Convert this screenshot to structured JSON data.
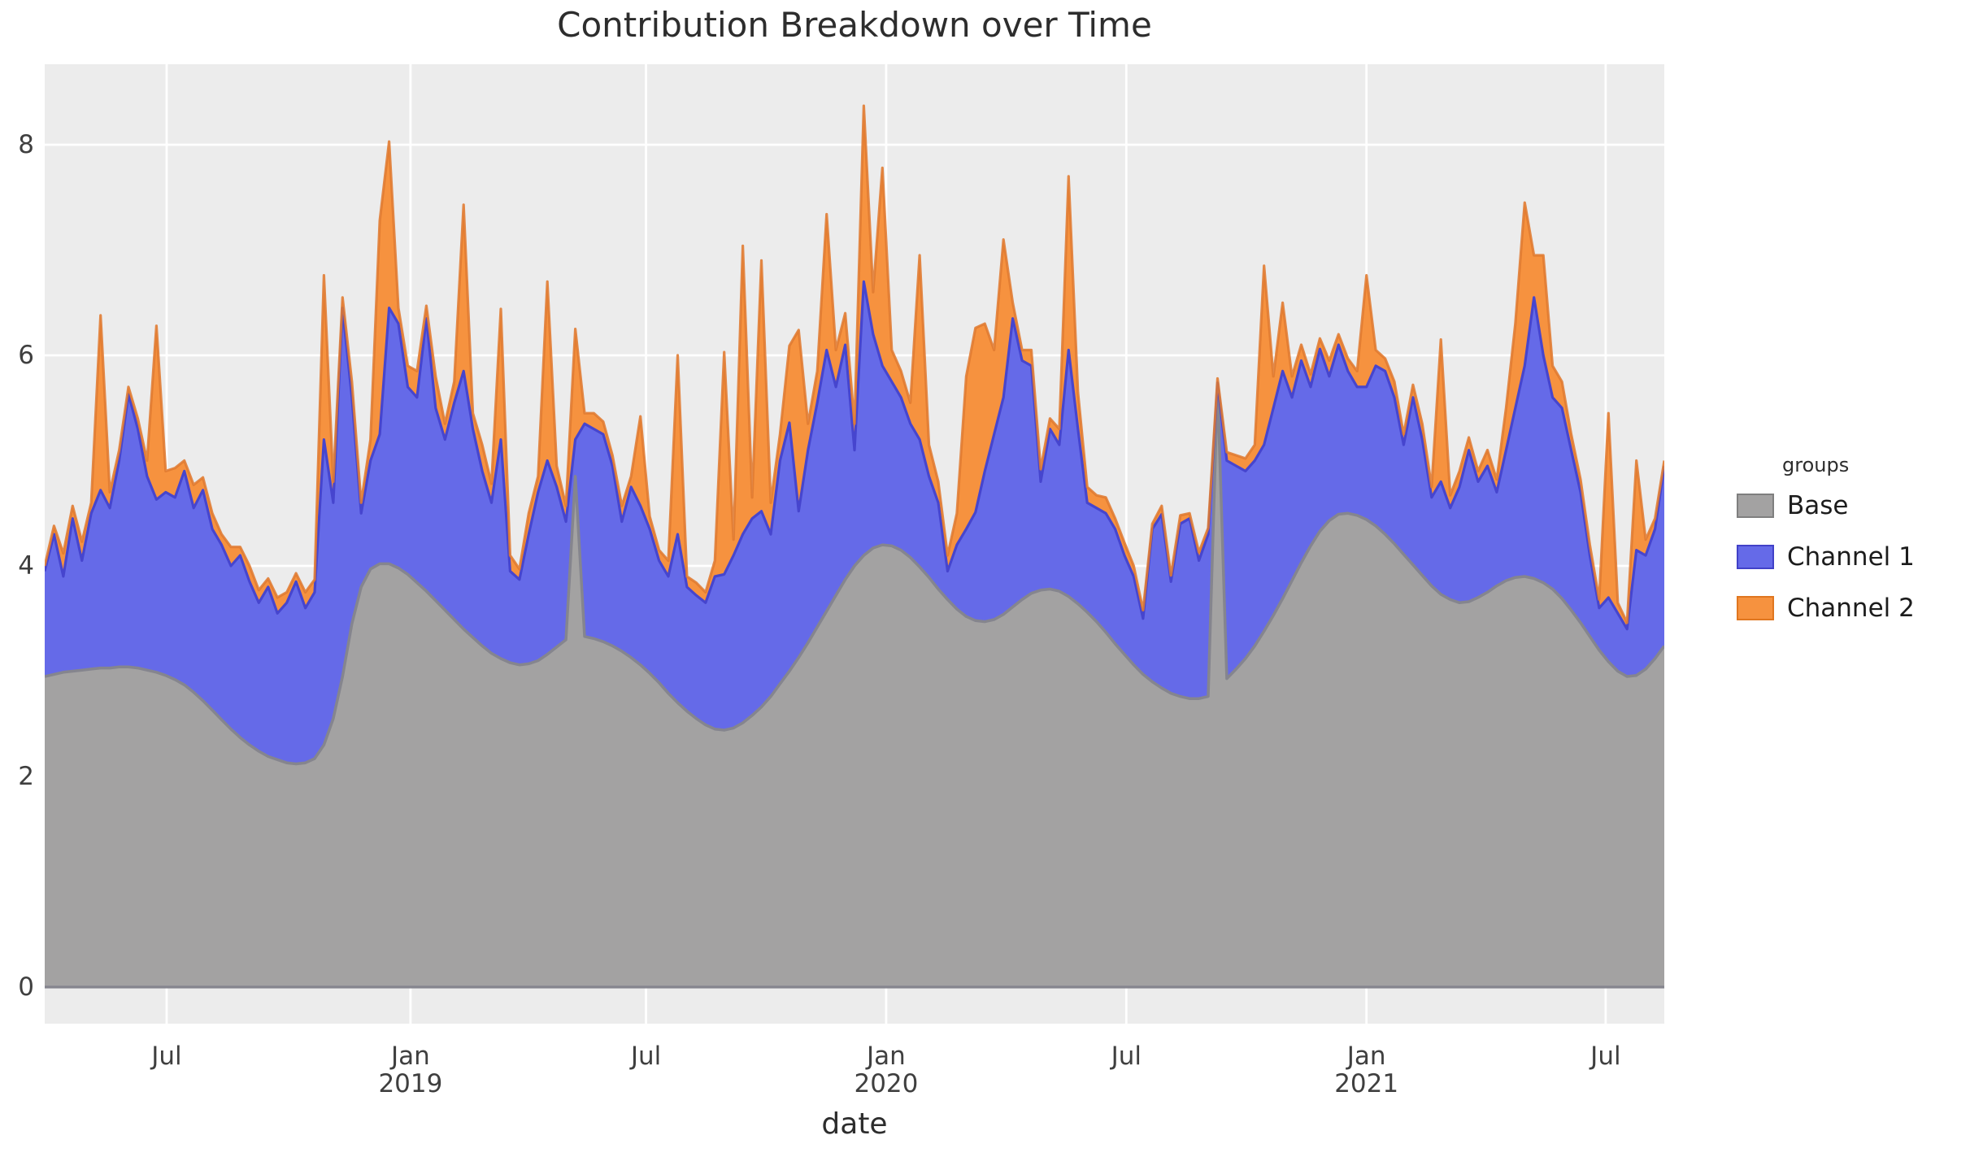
{
  "title": "Contribution Breakdown over Time",
  "axes": {
    "x_label": "date",
    "y_ticks": [
      0,
      2,
      4,
      6,
      8
    ],
    "x_ticks": [
      {
        "label": "Jul",
        "week": 13.1
      },
      {
        "label": "Jan",
        "year": "2019",
        "week": 39.3
      },
      {
        "label": "Jul",
        "week": 64.6
      },
      {
        "label": "Jan",
        "year": "2020",
        "week": 90.4
      },
      {
        "label": "Jul",
        "week": 116.2
      },
      {
        "label": "Jan",
        "year": "2021",
        "week": 142.0
      },
      {
        "label": "Jul",
        "week": 167.7
      }
    ]
  },
  "legend": {
    "title": "groups",
    "items": [
      {
        "label": "Base",
        "fill": "#A3A2A2",
        "border": "#7F7F7F"
      },
      {
        "label": "Channel 1",
        "fill": "#656AE8",
        "border": "#4141C8"
      },
      {
        "label": "Channel 2",
        "fill": "#F6923F",
        "border": "#E0761F"
      }
    ]
  },
  "colors": {
    "panel_bg": "#ECECEC",
    "grid": "#FFFFFF",
    "title_text": "#2D2D2D",
    "tick_text": "#3F3F3F"
  },
  "chart_data": {
    "type": "area",
    "stacked": true,
    "title": "Contribution Breakdown over Time",
    "xlabel": "date",
    "ylabel": "",
    "x_start": "2018-04-01",
    "x_end": "2021-08-01",
    "x_freq": "weekly",
    "n_points": 175,
    "ylim": [
      -0.35,
      8.77
    ],
    "grid": true,
    "legend_position": "right",
    "legend_title": "groups",
    "series": [
      {
        "name": "Base",
        "fill": "#A3A2A2",
        "stroke": "#85858E",
        "values": [
          2.95,
          2.97,
          2.99,
          3.0,
          3.01,
          3.02,
          3.03,
          3.03,
          3.04,
          3.04,
          3.03,
          3.01,
          2.99,
          2.96,
          2.92,
          2.87,
          2.8,
          2.72,
          2.63,
          2.54,
          2.45,
          2.37,
          2.3,
          2.24,
          2.19,
          2.16,
          2.13,
          2.12,
          2.13,
          2.17,
          2.3,
          2.55,
          2.95,
          3.45,
          3.8,
          3.97,
          4.02,
          4.02,
          3.98,
          3.92,
          3.84,
          3.76,
          3.67,
          3.58,
          3.49,
          3.4,
          3.32,
          3.24,
          3.17,
          3.12,
          3.08,
          3.06,
          3.07,
          3.1,
          3.16,
          3.23,
          3.3,
          4.85,
          3.33,
          3.31,
          3.28,
          3.24,
          3.19,
          3.13,
          3.06,
          2.98,
          2.89,
          2.79,
          2.7,
          2.62,
          2.55,
          2.49,
          2.45,
          2.44,
          2.46,
          2.51,
          2.58,
          2.66,
          2.76,
          2.88,
          3.0,
          3.13,
          3.27,
          3.42,
          3.57,
          3.72,
          3.87,
          4.0,
          4.1,
          4.17,
          4.2,
          4.19,
          4.15,
          4.08,
          3.99,
          3.89,
          3.78,
          3.68,
          3.59,
          3.52,
          3.48,
          3.47,
          3.49,
          3.54,
          3.61,
          3.68,
          3.74,
          3.77,
          3.78,
          3.76,
          3.71,
          3.64,
          3.56,
          3.47,
          3.37,
          3.26,
          3.16,
          3.06,
          2.97,
          2.9,
          2.84,
          2.79,
          2.76,
          2.74,
          2.74,
          2.76,
          5.72,
          2.93,
          3.02,
          3.12,
          3.24,
          3.38,
          3.53,
          3.69,
          3.86,
          4.03,
          4.19,
          4.33,
          4.43,
          4.49,
          4.5,
          4.48,
          4.44,
          4.38,
          4.3,
          4.21,
          4.11,
          4.01,
          3.91,
          3.81,
          3.73,
          3.68,
          3.65,
          3.66,
          3.7,
          3.75,
          3.81,
          3.86,
          3.89,
          3.9,
          3.88,
          3.84,
          3.78,
          3.69,
          3.58,
          3.46,
          3.33,
          3.2,
          3.09,
          3.0,
          2.95,
          2.96,
          3.02,
          3.12,
          3.24
        ]
      },
      {
        "name": "Channel 1",
        "fill": "#656AE8",
        "stroke": "#4645CE",
        "values": [
          1.0,
          1.33,
          0.91,
          1.45,
          1.04,
          1.48,
          1.69,
          1.52,
          1.96,
          2.59,
          2.27,
          1.84,
          1.64,
          1.74,
          1.73,
          2.03,
          1.75,
          2.0,
          1.72,
          1.66,
          1.55,
          1.73,
          1.55,
          1.41,
          1.61,
          1.39,
          1.52,
          1.73,
          1.47,
          1.58,
          2.9,
          2.05,
          3.5,
          2.15,
          0.7,
          1.03,
          1.23,
          2.43,
          2.32,
          1.78,
          1.76,
          2.59,
          1.83,
          1.62,
          2.06,
          2.45,
          1.98,
          1.66,
          1.43,
          2.08,
          0.87,
          0.81,
          1.23,
          1.6,
          1.84,
          1.52,
          1.12,
          0.35,
          2.02,
          1.99,
          1.97,
          1.71,
          1.23,
          1.62,
          1.51,
          1.37,
          1.16,
          1.11,
          1.6,
          1.18,
          1.17,
          1.16,
          1.45,
          1.48,
          1.64,
          1.79,
          1.87,
          1.86,
          1.54,
          2.12,
          2.36,
          1.39,
          1.83,
          2.13,
          2.48,
          1.98,
          2.23,
          1.1,
          2.6,
          2.03,
          1.7,
          1.56,
          1.45,
          1.27,
          1.21,
          0.96,
          0.82,
          0.27,
          0.61,
          0.83,
          1.03,
          1.43,
          1.76,
          2.06,
          2.74,
          2.27,
          2.16,
          1.03,
          1.52,
          1.39,
          2.34,
          1.66,
          1.04,
          1.08,
          1.13,
          1.09,
          0.94,
          0.84,
          0.53,
          1.45,
          1.65,
          1.06,
          1.64,
          1.71,
          1.31,
          1.54,
          0.02,
          2.07,
          1.93,
          1.78,
          1.76,
          1.77,
          1.97,
          2.16,
          1.74,
          1.92,
          1.51,
          1.73,
          1.37,
          1.61,
          1.35,
          1.22,
          1.26,
          1.52,
          1.55,
          1.39,
          1.04,
          1.59,
          1.29,
          0.84,
          1.07,
          0.87,
          1.1,
          1.44,
          1.1,
          1.2,
          0.89,
          1.24,
          1.61,
          2.0,
          2.67,
          2.16,
          1.82,
          1.81,
          1.52,
          1.24,
          0.77,
          0.4,
          0.61,
          0.55,
          0.45,
          1.19,
          1.08,
          1.23,
          1.71
        ]
      },
      {
        "name": "Channel 2",
        "fill": "#F6923F",
        "stroke": "#E07A30",
        "values": [
          0.05,
          0.08,
          0.22,
          0.12,
          0.18,
          0.1,
          1.66,
          0.15,
          0.1,
          0.07,
          0.1,
          0.15,
          1.65,
          0.2,
          0.28,
          0.1,
          0.22,
          0.12,
          0.15,
          0.1,
          0.18,
          0.08,
          0.15,
          0.12,
          0.08,
          0.15,
          0.1,
          0.08,
          0.15,
          0.12,
          1.56,
          0.2,
          0.1,
          0.15,
          0.1,
          0.2,
          2.03,
          1.58,
          0.15,
          0.2,
          0.25,
          0.12,
          0.3,
          0.15,
          0.2,
          1.58,
          0.15,
          0.25,
          0.18,
          1.24,
          0.15,
          0.1,
          0.2,
          0.15,
          1.7,
          0.2,
          0.15,
          1.05,
          0.1,
          0.15,
          0.12,
          0.1,
          0.15,
          0.1,
          0.85,
          0.12,
          0.1,
          0.15,
          1.7,
          0.1,
          0.12,
          0.1,
          0.15,
          2.11,
          0.15,
          2.74,
          0.2,
          2.38,
          0.3,
          0.25,
          0.73,
          1.72,
          0.25,
          0.3,
          1.29,
          0.35,
          0.3,
          0.25,
          1.67,
          0.4,
          1.88,
          0.3,
          0.25,
          0.2,
          1.75,
          0.3,
          0.2,
          0.15,
          0.3,
          1.45,
          1.75,
          1.4,
          0.8,
          1.5,
          0.15,
          0.1,
          0.15,
          0.12,
          0.1,
          0.15,
          1.65,
          0.35,
          0.15,
          0.12,
          0.15,
          0.1,
          0.12,
          0.1,
          0.08,
          0.05,
          0.08,
          0.06,
          0.08,
          0.05,
          0.08,
          0.06,
          0.04,
          0.08,
          0.1,
          0.12,
          0.15,
          1.7,
          0.3,
          0.65,
          0.2,
          0.15,
          0.12,
          0.1,
          0.15,
          0.1,
          0.12,
          0.15,
          1.06,
          0.15,
          0.12,
          0.15,
          0.1,
          0.12,
          0.15,
          0.1,
          1.35,
          0.12,
          0.15,
          0.12,
          0.1,
          0.15,
          0.12,
          0.4,
          0.8,
          1.55,
          0.4,
          0.95,
          0.3,
          0.25,
          0.15,
          0.12,
          0.1,
          0.08,
          1.75,
          0.1,
          0.06,
          0.85,
          0.15,
          0.1,
          0.05
        ]
      }
    ]
  }
}
